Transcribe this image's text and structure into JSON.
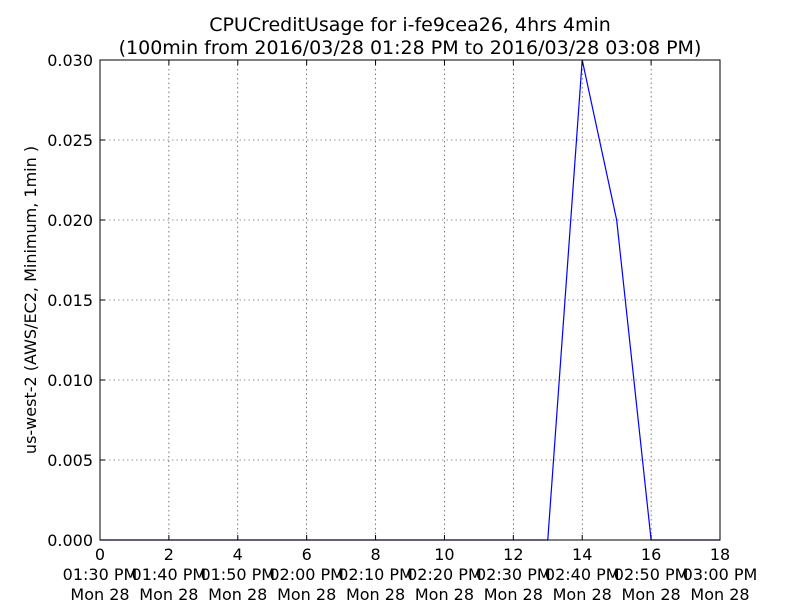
{
  "chart_data": {
    "type": "line",
    "title": "CPUCreditUsage for i-fe9cea26, 4hrs 4min",
    "subtitle": "(100min from 2016/03/28 01:28 PM to 2016/03/28 03:08 PM)",
    "xlabel": "",
    "ylabel": "us-west-2 (AWS/EC2, Minimum, 1min )",
    "xlim": [
      0,
      18
    ],
    "ylim": [
      0,
      0.03
    ],
    "grid": true,
    "line_color": "#0000ff",
    "x_ticks": [
      {
        "value": 0,
        "label": "0",
        "time": "01:30 PM",
        "day": "Mon 28"
      },
      {
        "value": 2,
        "label": "2",
        "time": "01:40 PM",
        "day": "Mon 28"
      },
      {
        "value": 4,
        "label": "4",
        "time": "01:50 PM",
        "day": "Mon 28"
      },
      {
        "value": 6,
        "label": "6",
        "time": "02:00 PM",
        "day": "Mon 28"
      },
      {
        "value": 8,
        "label": "8",
        "time": "02:10 PM",
        "day": "Mon 28"
      },
      {
        "value": 10,
        "label": "10",
        "time": "02:20 PM",
        "day": "Mon 28"
      },
      {
        "value": 12,
        "label": "12",
        "time": "02:30 PM",
        "day": "Mon 28"
      },
      {
        "value": 14,
        "label": "14",
        "time": "02:40 PM",
        "day": "Mon 28"
      },
      {
        "value": 16,
        "label": "16",
        "time": "02:50 PM",
        "day": "Mon 28"
      },
      {
        "value": 18,
        "label": "18",
        "time": "03:00 PM",
        "day": "Mon 28"
      }
    ],
    "y_ticks": [
      {
        "value": 0.0,
        "label": "0.000"
      },
      {
        "value": 0.005,
        "label": "0.005"
      },
      {
        "value": 0.01,
        "label": "0.010"
      },
      {
        "value": 0.015,
        "label": "0.015"
      },
      {
        "value": 0.02,
        "label": "0.020"
      },
      {
        "value": 0.025,
        "label": "0.025"
      },
      {
        "value": 0.03,
        "label": "0.030"
      }
    ],
    "series": [
      {
        "x": [
          0,
          1,
          2,
          3,
          4,
          5,
          6,
          7,
          8,
          9,
          10,
          11,
          12,
          13,
          14,
          15,
          16,
          17,
          18
        ],
        "y": [
          0,
          0,
          0,
          0,
          0,
          0,
          0,
          0,
          0,
          0,
          0,
          0,
          0,
          0,
          0.03,
          0.02,
          0,
          0,
          0
        ]
      }
    ]
  }
}
